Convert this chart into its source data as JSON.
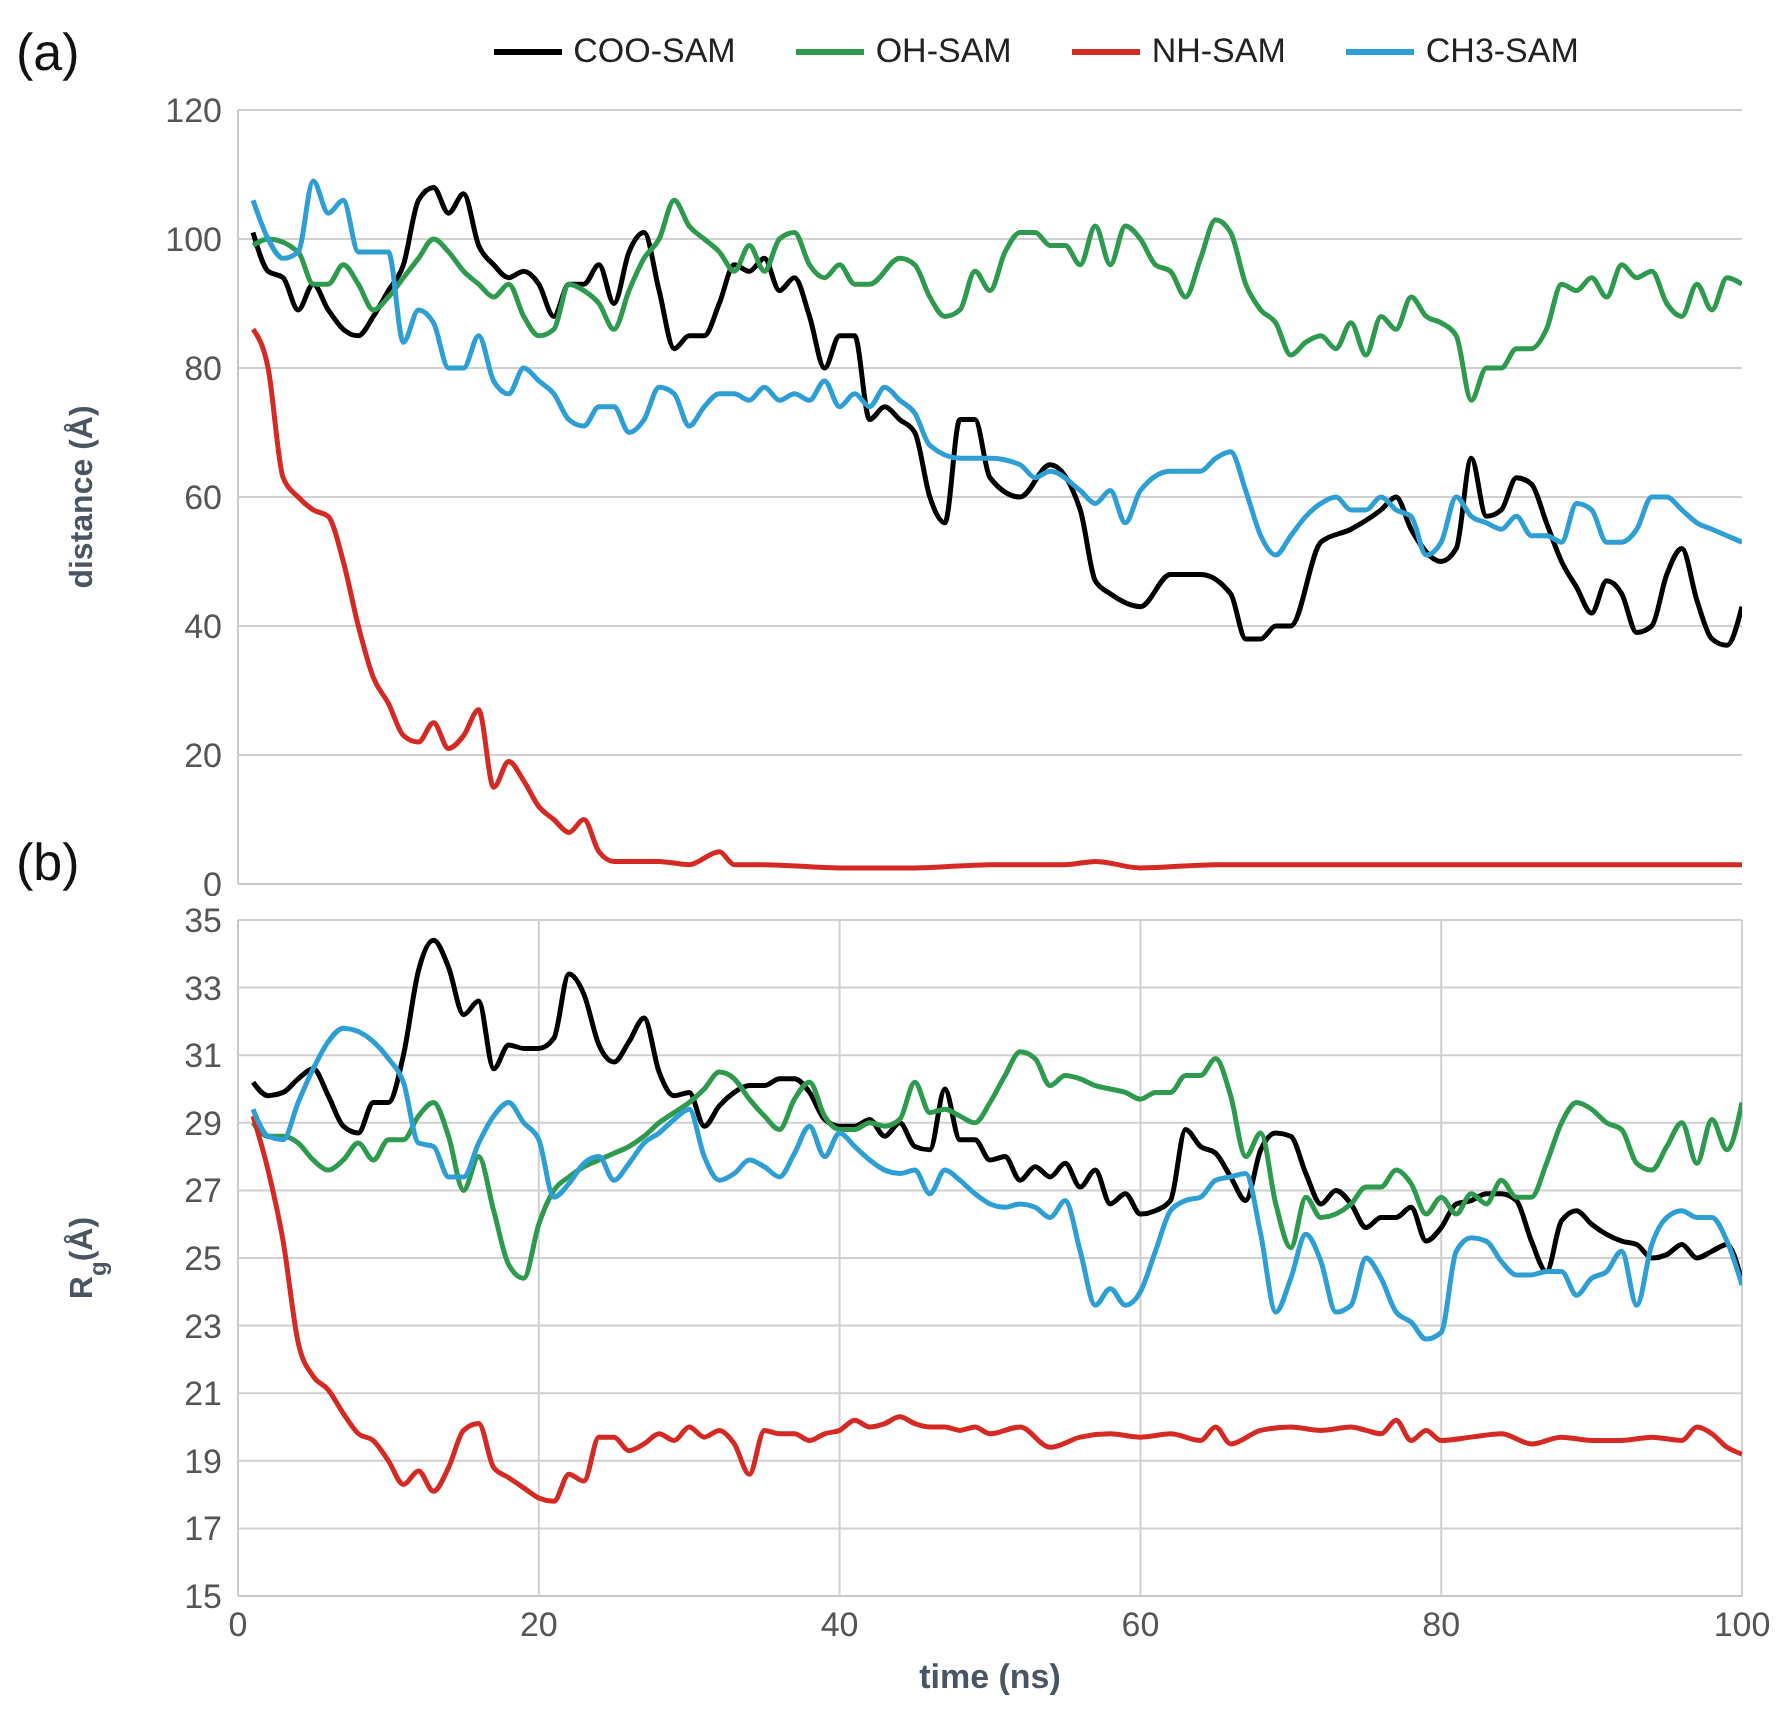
{
  "chart_data": [
    {
      "type": "line",
      "annotations": [
        "(a)"
      ],
      "ylabel": "distance (Å)",
      "xlim": [
        0,
        100
      ],
      "xticks": [
        0,
        20,
        40,
        60,
        80,
        100
      ],
      "ylim": [
        0,
        120
      ],
      "yticks": [
        0,
        20,
        40,
        60,
        80,
        100,
        120
      ],
      "grid": true,
      "legend": "top",
      "tick_labels": "y",
      "line_style": "solid",
      "marker": "none",
      "series": [
        {
          "name": "COO-SAM",
          "color": "#000000",
          "x": [
            1,
            2,
            3,
            4,
            5,
            6,
            7,
            8,
            9,
            10,
            11,
            12,
            13,
            14,
            15,
            16,
            17,
            18,
            19,
            20,
            21,
            22,
            23,
            24,
            25,
            26,
            27,
            28,
            29,
            30,
            31,
            32,
            33,
            34,
            35,
            36,
            37,
            38,
            39,
            40,
            41,
            42,
            43,
            44,
            45,
            46,
            47,
            48,
            49,
            50,
            52,
            54,
            56,
            57,
            58,
            60,
            62,
            64,
            66,
            67,
            68,
            69,
            70,
            72,
            74,
            76,
            77,
            78,
            80,
            81,
            82,
            83,
            84,
            85,
            86,
            87,
            88,
            89,
            90,
            91,
            92,
            93,
            94,
            95,
            96,
            97,
            98,
            99,
            100
          ],
          "values": [
            101,
            95,
            94,
            89,
            93,
            89,
            86,
            85,
            88,
            92,
            96,
            106,
            108,
            104,
            107,
            99,
            96,
            94,
            95,
            93,
            88,
            93,
            93,
            96,
            90,
            98,
            101,
            92,
            83,
            85,
            85,
            90,
            96,
            95,
            97,
            92,
            94,
            88,
            80,
            85,
            85,
            72,
            74,
            72,
            70,
            60,
            56,
            72,
            72,
            63,
            60,
            65,
            58,
            47,
            45,
            43,
            48,
            48,
            45,
            38,
            38,
            40,
            40,
            53,
            55,
            58,
            60,
            55,
            50,
            52,
            66,
            57,
            58,
            63,
            62,
            56,
            50,
            46,
            42,
            47,
            45,
            39,
            40,
            48,
            52,
            44,
            38,
            37,
            43
          ]
        },
        {
          "name": "OH-SAM",
          "color": "#2e9a4e",
          "x": [
            1,
            2,
            4,
            5,
            6,
            7,
            8,
            9,
            10,
            11,
            12,
            13,
            14,
            15,
            16,
            17,
            18,
            19,
            20,
            21,
            22,
            23,
            24,
            25,
            26,
            27,
            28,
            29,
            30,
            31,
            32,
            33,
            34,
            35,
            36,
            37,
            38,
            39,
            40,
            41,
            42,
            44,
            45,
            46,
            47,
            48,
            49,
            50,
            51,
            52,
            53,
            54,
            55,
            56,
            57,
            58,
            59,
            60,
            61,
            62,
            63,
            64,
            65,
            66,
            67,
            68,
            69,
            70,
            71,
            72,
            73,
            74,
            75,
            76,
            77,
            78,
            79,
            80,
            81,
            82,
            83,
            84,
            85,
            86,
            87,
            88,
            89,
            90,
            91,
            92,
            93,
            94,
            95,
            96,
            97,
            98,
            99,
            100
          ],
          "values": [
            99,
            100,
            98,
            93,
            93,
            96,
            93,
            89,
            91,
            94,
            97,
            100,
            98,
            95,
            93,
            91,
            93,
            88,
            85,
            86,
            93,
            92,
            90,
            86,
            92,
            97,
            100,
            106,
            102,
            100,
            98,
            95,
            99,
            95,
            100,
            101,
            96,
            94,
            96,
            93,
            93,
            97,
            96,
            91,
            88,
            89,
            95,
            92,
            98,
            101,
            101,
            99,
            99,
            96,
            102,
            96,
            102,
            100,
            96,
            95,
            91,
            97,
            103,
            101,
            93,
            89,
            87,
            82,
            84,
            85,
            83,
            87,
            82,
            88,
            86,
            91,
            88,
            87,
            85,
            75,
            80,
            80,
            83,
            83,
            86,
            93,
            92,
            94,
            91,
            96,
            94,
            95,
            90,
            88,
            93,
            89,
            94,
            93
          ]
        },
        {
          "name": "NH-SAM",
          "color": "#d42a23",
          "x": [
            1,
            2,
            3,
            4,
            5,
            6,
            7,
            8,
            9,
            10,
            11,
            12,
            13,
            14,
            15,
            16,
            17,
            18,
            19,
            20,
            21,
            22,
            23,
            24,
            25,
            28,
            30,
            32,
            33,
            35,
            40,
            45,
            50,
            55,
            57,
            60,
            65,
            70,
            80,
            90,
            100
          ],
          "values": [
            86,
            80,
            63,
            60,
            58,
            57,
            50,
            40,
            32,
            28,
            23,
            22,
            25,
            21,
            23,
            27,
            15,
            19,
            16,
            12,
            10,
            8,
            10,
            5,
            3.5,
            3.5,
            3,
            5,
            3,
            3,
            2.5,
            2.5,
            3,
            3,
            3.5,
            2.5,
            3,
            3,
            3,
            3,
            3
          ]
        },
        {
          "name": "CH3-SAM",
          "color": "#2e9fd4",
          "x": [
            1,
            2,
            3,
            4,
            5,
            6,
            7,
            8,
            9,
            10,
            11,
            12,
            13,
            14,
            15,
            16,
            17,
            18,
            19,
            20,
            21,
            22,
            23,
            24,
            25,
            26,
            27,
            28,
            29,
            30,
            31,
            32,
            33,
            34,
            35,
            36,
            37,
            38,
            39,
            40,
            41,
            42,
            43,
            44,
            45,
            46,
            48,
            50,
            52,
            53,
            54,
            56,
            57,
            58,
            59,
            60,
            62,
            64,
            65,
            66,
            67,
            68,
            69,
            70,
            71,
            72,
            73,
            74,
            75,
            76,
            77,
            78,
            79,
            80,
            81,
            82,
            83,
            84,
            85,
            86,
            87,
            88,
            89,
            90,
            91,
            92,
            93,
            94,
            95,
            96,
            97,
            98,
            99,
            100
          ],
          "values": [
            106,
            100,
            97,
            98,
            109,
            104,
            106,
            98,
            98,
            98,
            84,
            89,
            87,
            80,
            80,
            85,
            78,
            76,
            80,
            78,
            76,
            72,
            71,
            74,
            74,
            70,
            72,
            77,
            76,
            71,
            74,
            76,
            76,
            75,
            77,
            75,
            76,
            75,
            78,
            74,
            76,
            74,
            77,
            75,
            73,
            68,
            66,
            66,
            65,
            63,
            64,
            61,
            59,
            61,
            56,
            61,
            64,
            64,
            66,
            67,
            61,
            54,
            51,
            54,
            57,
            59,
            60,
            58,
            58,
            60,
            58,
            57,
            51,
            53,
            60,
            57,
            56,
            55,
            57,
            54,
            54,
            53,
            59,
            58,
            53,
            53,
            55,
            60,
            60,
            58,
            56,
            55,
            54,
            53
          ]
        }
      ]
    },
    {
      "type": "line",
      "annotations": [
        "(b)"
      ],
      "ylabel": "R$_{g}$(Å)",
      "xlabel": "time (ns)",
      "xlim": [
        0,
        100
      ],
      "xticks": [
        0,
        20,
        40,
        60,
        80,
        100
      ],
      "ylim": [
        15,
        35
      ],
      "yticks": [
        15,
        17,
        19,
        21,
        23,
        25,
        27,
        29,
        31,
        33,
        35
      ],
      "grid": true,
      "line_style": "solid",
      "marker": "none",
      "series": [
        {
          "color": "#000000",
          "x": [
            1,
            2,
            3,
            4,
            5,
            6,
            7,
            8,
            9,
            10,
            11,
            12,
            13,
            14,
            15,
            16,
            17,
            18,
            19,
            20,
            21,
            22,
            23,
            24,
            25,
            26,
            27,
            28,
            29,
            30,
            31,
            32,
            33,
            34,
            35,
            36,
            37,
            38,
            39,
            40,
            41,
            42,
            43,
            44,
            45,
            46,
            47,
            48,
            49,
            50,
            51,
            52,
            53,
            54,
            55,
            56,
            57,
            58,
            59,
            60,
            61,
            62,
            63,
            64,
            65,
            66,
            67,
            68,
            69,
            70,
            71,
            72,
            73,
            74,
            75,
            76,
            77,
            78,
            79,
            80,
            81,
            82,
            83,
            84,
            85,
            86,
            87,
            88,
            89,
            90,
            91,
            92,
            93,
            94,
            95,
            96,
            97,
            98,
            99,
            100
          ],
          "values": [
            30.2,
            29.8,
            29.9,
            30.3,
            30.6,
            29.8,
            28.9,
            28.7,
            29.6,
            29.6,
            31,
            33.5,
            34.4,
            33.6,
            32.2,
            32.6,
            30.6,
            31.3,
            31.2,
            31.2,
            31.5,
            33.4,
            32.8,
            31.3,
            30.8,
            31.4,
            32.1,
            30.5,
            29.8,
            29.9,
            28.9,
            29.5,
            29.9,
            30.1,
            30.1,
            30.3,
            30.3,
            29.9,
            29.1,
            28.9,
            28.9,
            29.1,
            28.6,
            29,
            28.3,
            28.2,
            30,
            28.5,
            28.5,
            27.9,
            28,
            27.3,
            27.7,
            27.4,
            27.8,
            27.1,
            27.6,
            26.6,
            26.9,
            26.3,
            26.4,
            26.7,
            28.8,
            28.3,
            28.1,
            27.4,
            26.7,
            28.2,
            28.7,
            28.6,
            27.5,
            26.6,
            27,
            26.6,
            25.9,
            26.2,
            26.2,
            26.5,
            25.5,
            25.9,
            26.6,
            26.7,
            26.9,
            26.9,
            26.7,
            25.5,
            24.6,
            26.1,
            26.4,
            26,
            25.7,
            25.5,
            25.4,
            25,
            25.1,
            25.4,
            25,
            25.2,
            25.4,
            24.3
          ]
        },
        {
          "color": "#2e9a4e",
          "x": [
            1,
            2,
            3,
            4,
            5,
            6,
            7,
            8,
            9,
            10,
            11,
            12,
            13,
            14,
            15,
            16,
            17,
            18,
            19,
            20,
            21,
            22,
            23,
            24,
            25,
            26,
            27,
            28,
            29,
            30,
            31,
            32,
            33,
            34,
            35,
            36,
            37,
            38,
            39,
            40,
            41,
            42,
            43,
            44,
            45,
            46,
            47,
            48,
            49,
            50,
            51,
            52,
            53,
            54,
            55,
            56,
            57,
            58,
            59,
            60,
            61,
            62,
            63,
            64,
            65,
            66,
            67,
            68,
            69,
            70,
            71,
            72,
            73,
            74,
            75,
            76,
            77,
            78,
            79,
            80,
            81,
            82,
            83,
            84,
            85,
            86,
            87,
            88,
            89,
            90,
            91,
            92,
            93,
            94,
            95,
            96,
            97,
            98,
            99,
            100
          ],
          "values": [
            29,
            28.6,
            28.6,
            28.4,
            27.9,
            27.6,
            27.9,
            28.4,
            27.9,
            28.5,
            28.5,
            29.2,
            29.6,
            28.6,
            27,
            28,
            26.4,
            24.8,
            24.4,
            26,
            27,
            27.4,
            27.7,
            27.9,
            28.1,
            28.3,
            28.6,
            29,
            29.3,
            29.6,
            30,
            30.5,
            30.3,
            29.7,
            29.2,
            28.8,
            29.7,
            30.2,
            29.2,
            28.8,
            28.8,
            29,
            28.9,
            29.1,
            30.2,
            29.3,
            29.4,
            29.2,
            29,
            29.6,
            30.4,
            31.1,
            30.9,
            30.1,
            30.4,
            30.3,
            30.1,
            30,
            29.9,
            29.7,
            29.9,
            29.9,
            30.4,
            30.4,
            30.9,
            29.8,
            28,
            28.7,
            26.6,
            25.3,
            26.8,
            26.2,
            26.3,
            26.6,
            27.1,
            27.1,
            27.6,
            27.2,
            26.3,
            26.8,
            26.3,
            26.9,
            26.6,
            27.3,
            26.8,
            26.8,
            27.8,
            29,
            29.6,
            29.4,
            29,
            28.8,
            27.8,
            27.6,
            28.3,
            29,
            27.8,
            29.1,
            28.2,
            29.6
          ]
        },
        {
          "color": "#d42a23",
          "x": [
            1,
            2,
            3,
            4,
            5,
            6,
            7,
            8,
            9,
            10,
            11,
            12,
            13,
            14,
            15,
            16,
            17,
            18,
            19,
            20,
            21,
            22,
            23,
            24,
            25,
            26,
            27,
            28,
            29,
            30,
            31,
            32,
            33,
            34,
            35,
            36,
            37,
            38,
            39,
            40,
            41,
            42,
            43,
            44,
            45,
            46,
            47,
            48,
            49,
            50,
            52,
            54,
            56,
            58,
            60,
            62,
            64,
            65,
            66,
            68,
            70,
            72,
            74,
            75,
            76,
            77,
            78,
            79,
            80,
            82,
            84,
            86,
            88,
            90,
            92,
            94,
            96,
            97,
            98,
            99,
            100
          ],
          "values": [
            29.2,
            27.6,
            25.5,
            22.5,
            21.5,
            21.1,
            20.4,
            19.8,
            19.6,
            19,
            18.3,
            18.7,
            18.1,
            18.8,
            19.9,
            20.1,
            18.8,
            18.5,
            18.2,
            17.9,
            17.8,
            18.6,
            18.4,
            19.7,
            19.7,
            19.3,
            19.5,
            19.8,
            19.6,
            20,
            19.7,
            19.9,
            19.5,
            18.6,
            19.9,
            19.8,
            19.8,
            19.6,
            19.8,
            19.9,
            20.2,
            20,
            20.1,
            20.3,
            20.1,
            20,
            20,
            19.9,
            20,
            19.8,
            20,
            19.4,
            19.7,
            19.8,
            19.7,
            19.8,
            19.6,
            20,
            19.5,
            19.9,
            20,
            19.9,
            20,
            19.9,
            19.8,
            20.2,
            19.6,
            19.9,
            19.6,
            19.7,
            19.8,
            19.5,
            19.7,
            19.6,
            19.6,
            19.7,
            19.6,
            20,
            19.8,
            19.4,
            19.2
          ]
        },
        {
          "color": "#2e9fd4",
          "x": [
            1,
            2,
            3,
            4,
            5,
            6,
            7,
            8,
            9,
            10,
            11,
            12,
            13,
            14,
            15,
            16,
            17,
            18,
            19,
            20,
            21,
            22,
            23,
            24,
            25,
            26,
            27,
            28,
            29,
            30,
            31,
            32,
            33,
            34,
            35,
            36,
            37,
            38,
            39,
            40,
            41,
            42,
            43,
            44,
            45,
            46,
            47,
            48,
            49,
            50,
            51,
            52,
            53,
            54,
            55,
            56,
            57,
            58,
            59,
            60,
            61,
            62,
            63,
            64,
            65,
            66,
            67,
            68,
            69,
            70,
            71,
            72,
            73,
            74,
            75,
            76,
            77,
            78,
            79,
            80,
            81,
            82,
            83,
            84,
            85,
            86,
            87,
            88,
            89,
            90,
            91,
            92,
            93,
            94,
            95,
            96,
            97,
            98,
            99,
            100
          ],
          "values": [
            29.4,
            28.6,
            28.5,
            29.6,
            30.6,
            31.4,
            31.8,
            31.7,
            31.4,
            30.9,
            30.2,
            28.4,
            28.3,
            27.4,
            27.4,
            28.4,
            29.2,
            29.6,
            29,
            28.5,
            26.8,
            27.2,
            27.8,
            28,
            27.3,
            27.8,
            28.4,
            28.7,
            29.1,
            29.4,
            28,
            27.3,
            27.5,
            27.9,
            27.7,
            27.4,
            28.1,
            28.9,
            28,
            28.7,
            28.3,
            27.9,
            27.6,
            27.5,
            27.6,
            26.9,
            27.6,
            27.3,
            26.9,
            26.6,
            26.5,
            26.6,
            26.5,
            26.2,
            26.7,
            25.2,
            23.6,
            24.1,
            23.6,
            24,
            25.2,
            26.4,
            26.7,
            26.8,
            27.3,
            27.4,
            27.5,
            25.7,
            23.4,
            24.4,
            25.7,
            24.9,
            23.4,
            23.6,
            25,
            24.4,
            23.4,
            23.1,
            22.6,
            22.8,
            25.2,
            25.6,
            25.5,
            24.9,
            24.5,
            24.5,
            24.6,
            24.6,
            23.9,
            24.4,
            24.6,
            25.2,
            23.6,
            25.4,
            26.2,
            26.4,
            26.2,
            26.2,
            25.5,
            24.2
          ]
        }
      ]
    }
  ]
}
